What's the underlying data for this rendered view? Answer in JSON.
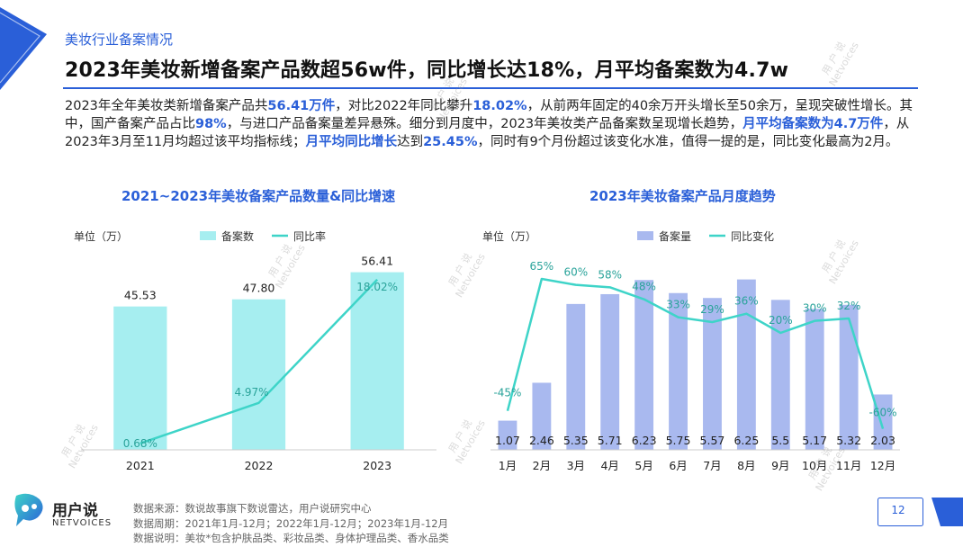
{
  "header": {
    "section_label": "美妆行业备案情况",
    "headline": "2023年美妆新增备案产品数超56w件，同比增长达18%，月平均备案数为4.7w"
  },
  "summary": {
    "segments": [
      {
        "text": "2023年全年美妆类新增备案产品共",
        "hl": false
      },
      {
        "text": "56.41万件",
        "hl": true
      },
      {
        "text": "，对比2022年同比攀升",
        "hl": false
      },
      {
        "text": "18.02%",
        "hl": true
      },
      {
        "text": "，从前两年固定的40余万开头增长至50余万，呈现突破性增长。其中，国产备案产品占比",
        "hl": false
      },
      {
        "text": "98%",
        "hl": true
      },
      {
        "text": "，与进口产品备案量差异悬殊。细分到月度中，2023年美妆类产品备案数呈现增长趋势，",
        "hl": false
      },
      {
        "text": "月平均备案数为4.7万件",
        "hl": true
      },
      {
        "text": "，从2023年3月至11月均超过该平均指标线；",
        "hl": false
      },
      {
        "text": "月平均同比增长",
        "hl": true
      },
      {
        "text": "达到",
        "hl": false
      },
      {
        "text": "25.45%",
        "hl": true
      },
      {
        "text": "，同时有9个月份超过该变化水准，值得一提的是，同比变化最高为2月。",
        "hl": false
      }
    ]
  },
  "chart_data": [
    {
      "type": "bar",
      "title": "2021~2023年美妆备案产品数量&同比增速",
      "unit_label": "单位（万）",
      "categories": [
        "2021",
        "2022",
        "2023"
      ],
      "series": [
        {
          "name": "备案数",
          "kind": "bar",
          "values": [
            45.53,
            47.8,
            56.41
          ],
          "value_labels": [
            "45.53",
            "47.80",
            "56.41"
          ],
          "color": "#a6eef0"
        },
        {
          "name": "同比率",
          "kind": "line",
          "values": [
            0.68,
            4.97,
            18.02
          ],
          "value_labels": [
            "0.68%",
            "4.97%",
            "18.02%"
          ],
          "color": "#3ed4c8"
        }
      ],
      "ylim": [
        0,
        60
      ],
      "line_ylim": [
        0,
        20
      ],
      "legend": "top-center",
      "grid": false
    },
    {
      "type": "bar",
      "title": "2023年美妆备案产品月度趋势",
      "unit_label": "单位（万）",
      "categories": [
        "1月",
        "2月",
        "3月",
        "4月",
        "5月",
        "6月",
        "7月",
        "8月",
        "9月",
        "10月",
        "11月",
        "12月"
      ],
      "series": [
        {
          "name": "备案量",
          "kind": "bar",
          "values": [
            1.07,
            2.46,
            5.35,
            5.71,
            6.23,
            5.75,
            5.57,
            6.25,
            5.5,
            5.17,
            5.32,
            2.03
          ],
          "value_labels": [
            "1.07",
            "2.46",
            "5.35",
            "5.71",
            "6.23",
            "5.75",
            "5.57",
            "6.25",
            "5.5",
            "5.17",
            "5.32",
            "2.03"
          ],
          "color": "#a9b9ef"
        },
        {
          "name": "同比变化",
          "kind": "line",
          "values": [
            -45,
            65,
            60,
            58,
            48,
            33,
            29,
            36,
            20,
            30,
            32,
            -60
          ],
          "value_labels": [
            "-45%",
            "65%",
            "60%",
            "58%",
            "48%",
            "33%",
            "29%",
            "36%",
            "20%",
            "30%",
            "32%",
            "-60%"
          ],
          "color": "#3ed4c8"
        }
      ],
      "ylim": [
        0,
        6.6
      ],
      "line_ylim": [
        -70,
        80
      ],
      "legend": "top-center",
      "grid": false
    }
  ],
  "footer": {
    "source": "数据来源：数说故事旗下数说雷达，用户说研究中心",
    "period": "数据周期：2021年1月-12月；2022年1月-12月；2023年1月-12月",
    "note": "数据说明：美妆*包含护肤品类、彩妆品类、身体护理品类、香水品类"
  },
  "logo": {
    "cn": "用户说",
    "en": "NETVOICES"
  },
  "page_number": "12",
  "colors": {
    "accent": "#2a5fd8",
    "teal": "#3ed4c8",
    "bar_light": "#a6eef0",
    "bar_purple": "#a9b9ef"
  }
}
